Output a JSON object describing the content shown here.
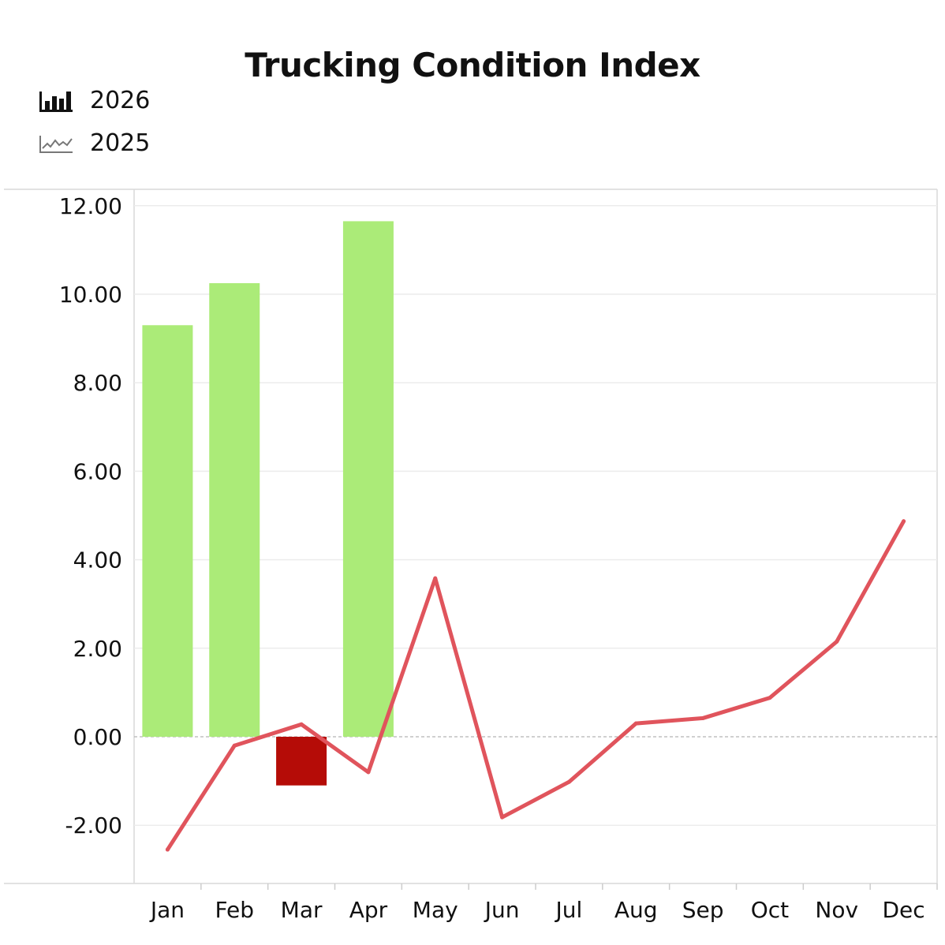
{
  "chart_data": {
    "type": "bar",
    "title": "Trucking Condition Index",
    "categories": [
      "Jan",
      "Feb",
      "Mar",
      "Apr",
      "May",
      "Jun",
      "Jul",
      "Aug",
      "Sep",
      "Oct",
      "Nov",
      "Dec"
    ],
    "ylim": [
      -3.3,
      12.3
    ],
    "yticks": [
      "12.00",
      "10.00",
      "8.00",
      "6.00",
      "4.00",
      "2.00",
      "0.00",
      "-2.00"
    ],
    "ytick_values": [
      12,
      10,
      8,
      6,
      4,
      2,
      0,
      -2
    ],
    "grid": true,
    "legend_position": "top-left",
    "series": [
      {
        "name": "2026",
        "type": "bar",
        "values": [
          9.3,
          10.25,
          -1.1,
          11.65,
          null,
          null,
          null,
          null,
          null,
          null,
          null,
          null
        ],
        "positive_color": "#abeb78",
        "negative_color": "#b50c07"
      },
      {
        "name": "2025",
        "type": "line",
        "values": [
          -2.55,
          -0.2,
          0.28,
          -0.8,
          3.58,
          -1.82,
          -1.02,
          0.3,
          0.42,
          0.88,
          2.15,
          4.87
        ],
        "color": "#e0545c"
      }
    ]
  },
  "legend": {
    "items": [
      {
        "label": "2026",
        "icon": "bar-chart-icon"
      },
      {
        "label": "2025",
        "icon": "line-chart-icon"
      }
    ]
  }
}
